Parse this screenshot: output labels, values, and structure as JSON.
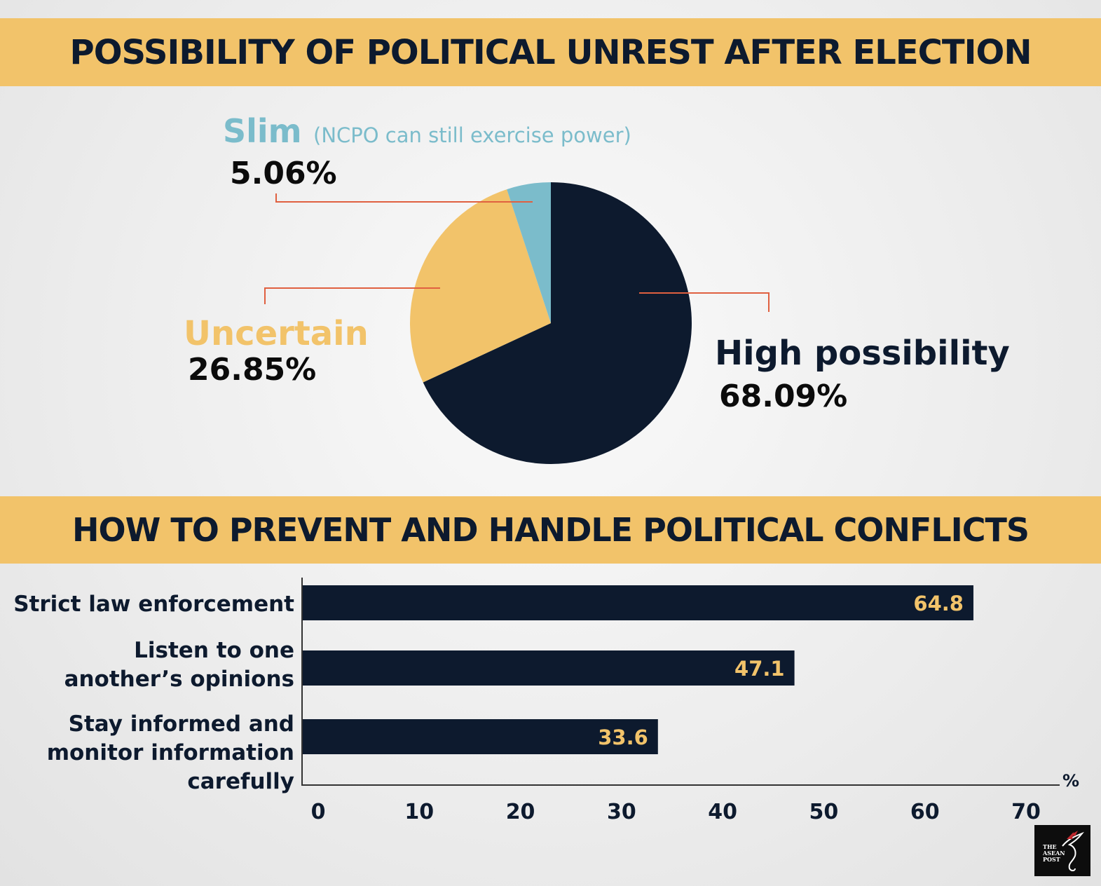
{
  "colors": {
    "navy": "#0d1a2e",
    "yellow": "#f2c36a",
    "blue": "#7bbccb",
    "leader": "#e06040"
  },
  "banner_top": "POSSIBILITY OF POLITICAL UNREST AFTER ELECTION",
  "banner_bottom": "HOW TO PREVENT AND HANDLE POLITICAL CONFLICTS",
  "pie_labels": {
    "slim_name": "Slim",
    "slim_note": "(NCPO can still exercise power)",
    "slim_value": "5.06%",
    "uncertain_name": "Uncertain",
    "uncertain_value": "26.85%",
    "high_name": "High possibility",
    "high_value": "68.09%"
  },
  "bar_labels": {
    "cat0": "Strict law enforcement",
    "cat1": "Listen to one another’s opinions",
    "cat2": "Stay informed and monitor information carefully"
  },
  "unit": "%",
  "logo": {
    "line1": "THE",
    "line2": "ASEAN",
    "line3": "POST"
  },
  "chart_data": [
    {
      "type": "pie",
      "title": "POSSIBILITY OF POLITICAL UNREST AFTER ELECTION",
      "slices": [
        {
          "label": "High possibility",
          "value": 68.09,
          "color": "#0d1a2e"
        },
        {
          "label": "Uncertain",
          "value": 26.85,
          "color": "#f2c36a"
        },
        {
          "label": "Slim",
          "value": 5.06,
          "color": "#7bbccb"
        }
      ]
    },
    {
      "type": "bar",
      "orientation": "horizontal",
      "title": "HOW TO PREVENT AND HANDLE POLITICAL CONFLICTS",
      "categories": [
        "Strict law enforcement",
        "Listen to one another’s opinions",
        "Stay informed and monitor information carefully"
      ],
      "values": [
        64.8,
        47.1,
        33.6
      ],
      "value_labels": [
        "64.8",
        "47.1",
        "33.6"
      ],
      "xlim": [
        0,
        70
      ],
      "ticks": [
        "0",
        "10",
        "20",
        "30",
        "40",
        "50",
        "60",
        "70"
      ],
      "tick_values": [
        0,
        10,
        20,
        30,
        40,
        50,
        60,
        70
      ],
      "unit": "%",
      "bar_color": "#0d1a2e",
      "label_color": "#f2c36a"
    }
  ]
}
